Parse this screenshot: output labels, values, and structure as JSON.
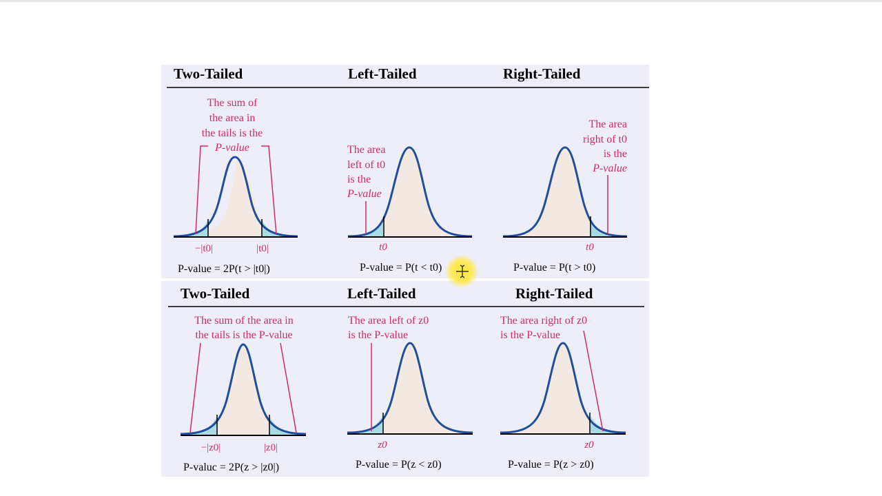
{
  "top_section": {
    "headers": [
      "Two-Tailed",
      "Left-Tailed",
      "Right-Tailed"
    ],
    "two_tailed": {
      "annotation": [
        "The sum of",
        "the area in",
        "the tails is the",
        "P-value"
      ],
      "ticks": [
        "−|t0|",
        "|t0|"
      ],
      "formula": "P-value = 2P(t > |t0|)"
    },
    "left_tailed": {
      "annotation": [
        "The area",
        "left of t0",
        "is the",
        "P-value"
      ],
      "ticks": [
        "t0"
      ],
      "formula": "P-value = P(t < t0)"
    },
    "right_tailed": {
      "annotation": [
        "The area",
        "right of t0",
        "is the",
        "P-value"
      ],
      "ticks": [
        "t0"
      ],
      "formula": "P-value = P(t > t0)"
    }
  },
  "bottom_section": {
    "headers": [
      "Two-Tailed",
      "Left-Tailed",
      "Right-Tailed"
    ],
    "two_tailed": {
      "annotation": [
        "The sum of the area in",
        "the tails is the P-value"
      ],
      "ticks": [
        "−|z0|",
        "|z0|"
      ],
      "formula": "P-valuc = 2P(z > |z0|)"
    },
    "left_tailed": {
      "annotation": [
        "The area left of z0",
        "is the P-value"
      ],
      "ticks": [
        "z0"
      ],
      "formula": "P-value = P(z < z0)"
    },
    "right_tailed": {
      "annotation": [
        "The area right of z0",
        "is the P-value"
      ],
      "ticks": [
        "z0"
      ],
      "formula": "P-value = P(z > z0)"
    }
  },
  "colors": {
    "curve": "#1f4f9a",
    "tail_fill": "#a9dbe2",
    "body_fill": "#f4e9e2",
    "annotation": "#d4286a",
    "panel_bg": "#eeeef8"
  }
}
